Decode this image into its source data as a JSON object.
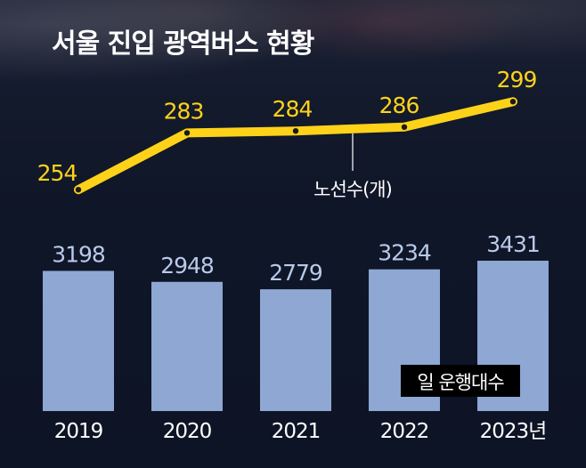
{
  "title": "서울 진입 광역버스 현황",
  "chart_data": {
    "type": "bar",
    "categories": [
      "2019",
      "2020",
      "2021",
      "2022",
      "2023년"
    ],
    "series": [
      {
        "name": "노선수(개)",
        "type": "line",
        "values": [
          254,
          283,
          284,
          286,
          299
        ],
        "color": "#ffd21a"
      },
      {
        "name": "일 운행대수",
        "type": "bar",
        "values": [
          3198,
          2948,
          2779,
          3234,
          3431
        ],
        "color": "#8ea7d3"
      }
    ],
    "ylim_line": [
      250,
      300
    ],
    "ylim_bar": [
      0,
      3431
    ],
    "grid": false
  }
}
